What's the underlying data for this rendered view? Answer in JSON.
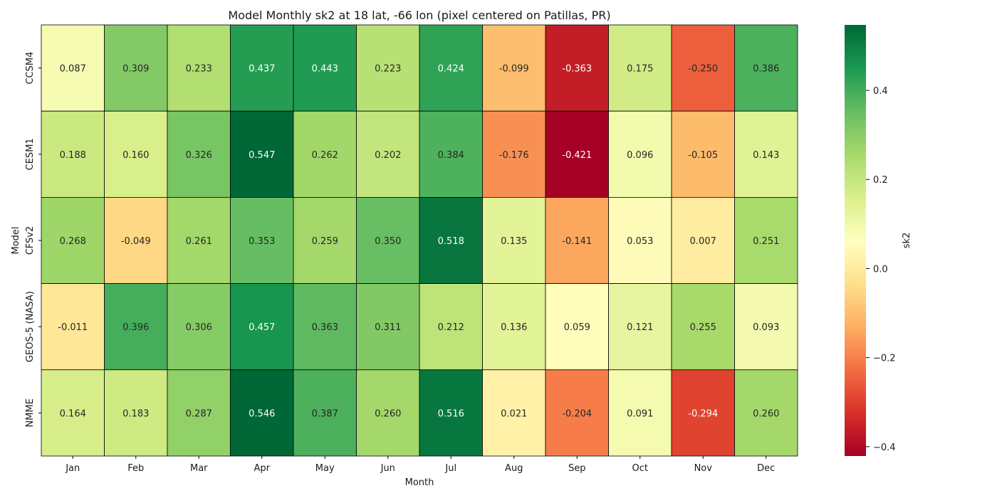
{
  "chart_data": {
    "type": "heatmap",
    "title": "Model Monthly sk2 at 18 lat, -66 lon (pixel centered on Patillas, PR)",
    "xlabel": "Month",
    "ylabel": "Model",
    "colorbar_label": "sk2",
    "x_categories": [
      "Jan",
      "Feb",
      "Mar",
      "Apr",
      "May",
      "Jun",
      "Jul",
      "Aug",
      "Sep",
      "Oct",
      "Nov",
      "Dec"
    ],
    "y_categories": [
      "CCSM4",
      "CESM1",
      "CFSv2",
      "GEOS-5 (NASA)",
      "NMME"
    ],
    "values": [
      [
        0.087,
        0.309,
        0.233,
        0.437,
        0.443,
        0.223,
        0.424,
        -0.099,
        -0.363,
        0.175,
        -0.25,
        0.386
      ],
      [
        0.188,
        0.16,
        0.326,
        0.547,
        0.262,
        0.202,
        0.384,
        -0.176,
        -0.421,
        0.096,
        -0.105,
        0.143
      ],
      [
        0.268,
        -0.049,
        0.261,
        0.353,
        0.259,
        0.35,
        0.518,
        0.135,
        -0.141,
        0.053,
        0.007,
        0.251
      ],
      [
        -0.011,
        0.396,
        0.306,
        0.457,
        0.363,
        0.311,
        0.212,
        0.136,
        0.059,
        0.121,
        0.255,
        0.093
      ],
      [
        0.164,
        0.183,
        0.287,
        0.546,
        0.387,
        0.26,
        0.516,
        0.021,
        -0.204,
        0.091,
        -0.294,
        0.26
      ]
    ],
    "vmin": -0.421,
    "vmax": 0.547,
    "colormap": "RdYlGn",
    "colorbar_ticks": [
      -0.4,
      -0.2,
      0.0,
      0.2,
      0.4
    ],
    "colorbar_tick_labels": [
      "−0.4",
      "−0.2",
      "0.0",
      "0.2",
      "0.4"
    ],
    "annotation_format": "0.000",
    "cell_border_color": "#000000"
  }
}
